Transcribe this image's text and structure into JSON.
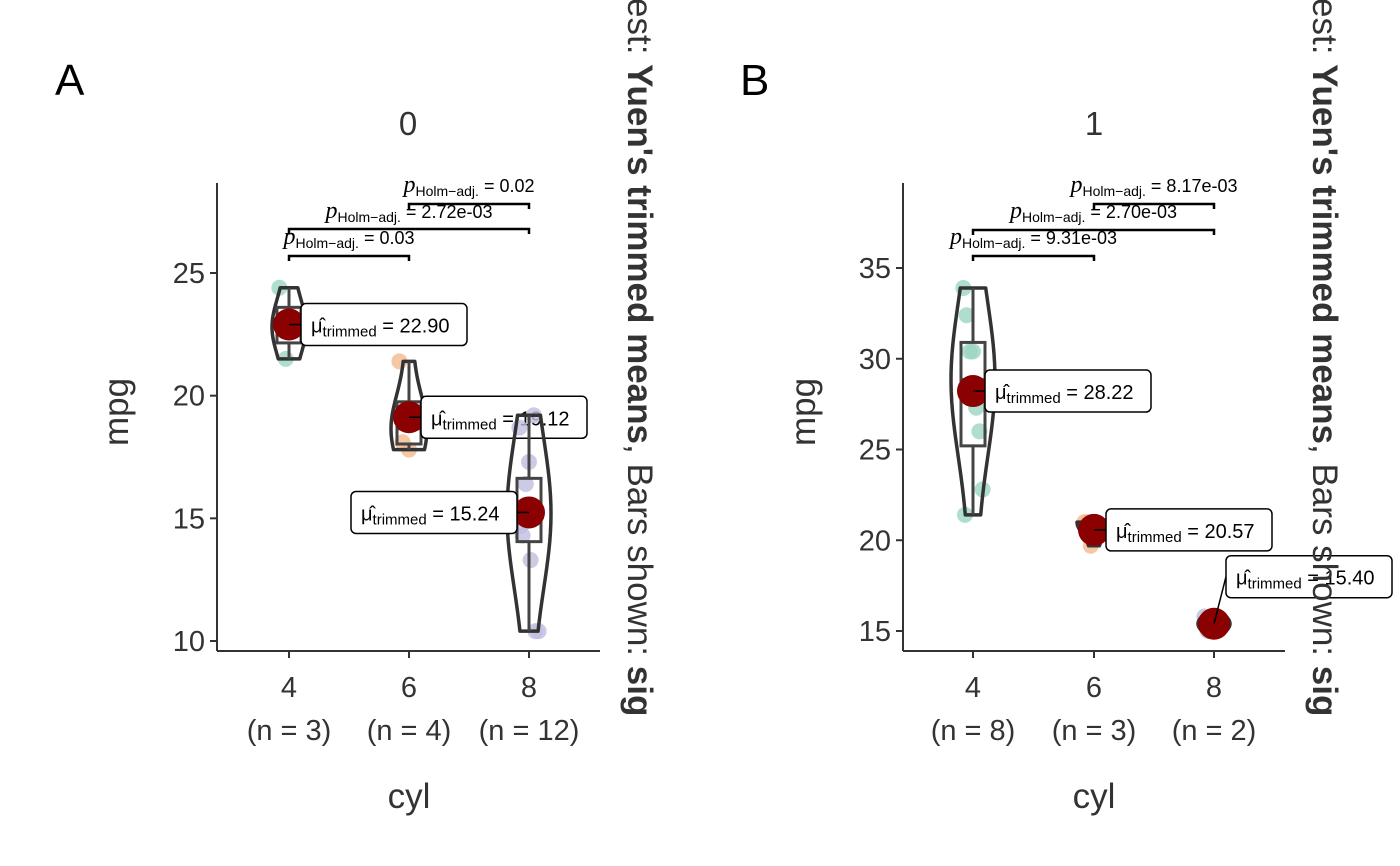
{
  "chart_data": [
    {
      "type": "violin-box-scatter",
      "panel_tag": "A",
      "title": "0",
      "xlabel": "cyl",
      "ylabel": "mpg",
      "ylim": [
        9.6,
        28.5
      ],
      "yticks": [
        10,
        15,
        20,
        25
      ],
      "categories": [
        "4",
        "6",
        "8"
      ],
      "category_labels": [
        "(n = 3)",
        "(n = 4)",
        "(n = 12)"
      ],
      "colors": [
        "#9BD5C3",
        "#F2B98D",
        "#BFBEE0"
      ],
      "groups": [
        {
          "cyl": "4",
          "n": 3,
          "points": [
            24.4,
            22.8,
            21.5
          ],
          "box": {
            "q1": 22.15,
            "median": 22.8,
            "q3": 23.6,
            "lo": 21.5,
            "hi": 24.4
          },
          "trimmed_mean": 22.9
        },
        {
          "cyl": "6",
          "n": 4,
          "points": [
            21.4,
            18.1,
            19.2,
            17.8
          ],
          "box": {
            "q1": 18.03,
            "median": 18.65,
            "q3": 19.75,
            "lo": 17.8,
            "hi": 21.4
          },
          "trimmed_mean": 19.12
        },
        {
          "cyl": "8",
          "n": 12,
          "points": [
            18.7,
            14.3,
            16.4,
            17.3,
            15.2,
            10.4,
            10.4,
            14.7,
            15.5,
            15.2,
            13.3,
            19.2
          ],
          "box": {
            "q1": 14.05,
            "median": 15.2,
            "q3": 16.63,
            "lo": 10.4,
            "hi": 19.2
          },
          "trimmed_mean": 15.24
        }
      ],
      "mean_labels": [
        "22.90",
        "19.12",
        "15.24"
      ],
      "comparisons": [
        {
          "from": "4",
          "to": "6",
          "p_label": "0.03"
        },
        {
          "from": "4",
          "to": "8",
          "p_label": "2.72e-03"
        },
        {
          "from": "6",
          "to": "8",
          "p_label": "0.02"
        }
      ]
    },
    {
      "type": "violin-box-scatter",
      "panel_tag": "B",
      "title": "1",
      "xlabel": "cyl",
      "ylabel": "mpg",
      "ylim": [
        14.0,
        39.0
      ],
      "yticks": [
        15,
        20,
        25,
        30,
        35
      ],
      "categories": [
        "4",
        "6",
        "8"
      ],
      "category_labels": [
        "(n = 8)",
        "(n = 3)",
        "(n = 2)"
      ],
      "colors": [
        "#9BD5C3",
        "#F2B98D",
        "#BFBEE0"
      ],
      "groups": [
        {
          "cyl": "4",
          "n": 8,
          "points": [
            33.9,
            32.4,
            30.4,
            30.4,
            27.3,
            26.0,
            22.8,
            21.4
          ],
          "box": {
            "q1": 25.2,
            "median": 28.85,
            "q3": 30.9,
            "lo": 21.4,
            "hi": 33.9
          },
          "trimmed_mean": 28.22
        },
        {
          "cyl": "6",
          "n": 3,
          "points": [
            21.0,
            21.0,
            19.7
          ],
          "box": {
            "q1": 20.35,
            "median": 21.0,
            "q3": 21.0,
            "lo": 19.7,
            "hi": 21.0
          },
          "trimmed_mean": 20.57
        },
        {
          "cyl": "8",
          "n": 2,
          "points": [
            15.8,
            15.0
          ],
          "box": {
            "q1": 15.2,
            "median": 15.4,
            "q3": 15.6,
            "lo": 15.0,
            "hi": 15.8
          },
          "trimmed_mean": 15.4
        }
      ],
      "mean_labels": [
        "28.22",
        "20.57",
        "15.40"
      ],
      "comparisons": [
        {
          "from": "4",
          "to": "6",
          "p_label": "9.31e-03"
        },
        {
          "from": "4",
          "to": "8",
          "p_label": "2.70e-03"
        },
        {
          "from": "6",
          "to": "8",
          "p_label": "8.17e-03"
        }
      ]
    }
  ],
  "labels": {
    "p_symbol": "p",
    "p_subscript": "Holm−adj.",
    "mu_symbol": "μ̂",
    "mu_subscript": "trimmed",
    "equals": " = ",
    "caption_prefix": "est: ",
    "caption_bold1": "Yuen's trimmed means",
    "caption_mid": ", Bars shown: ",
    "caption_bold2": "sig"
  },
  "style": {
    "mean_point_color": "#8B0000",
    "line_color": "#333333"
  }
}
